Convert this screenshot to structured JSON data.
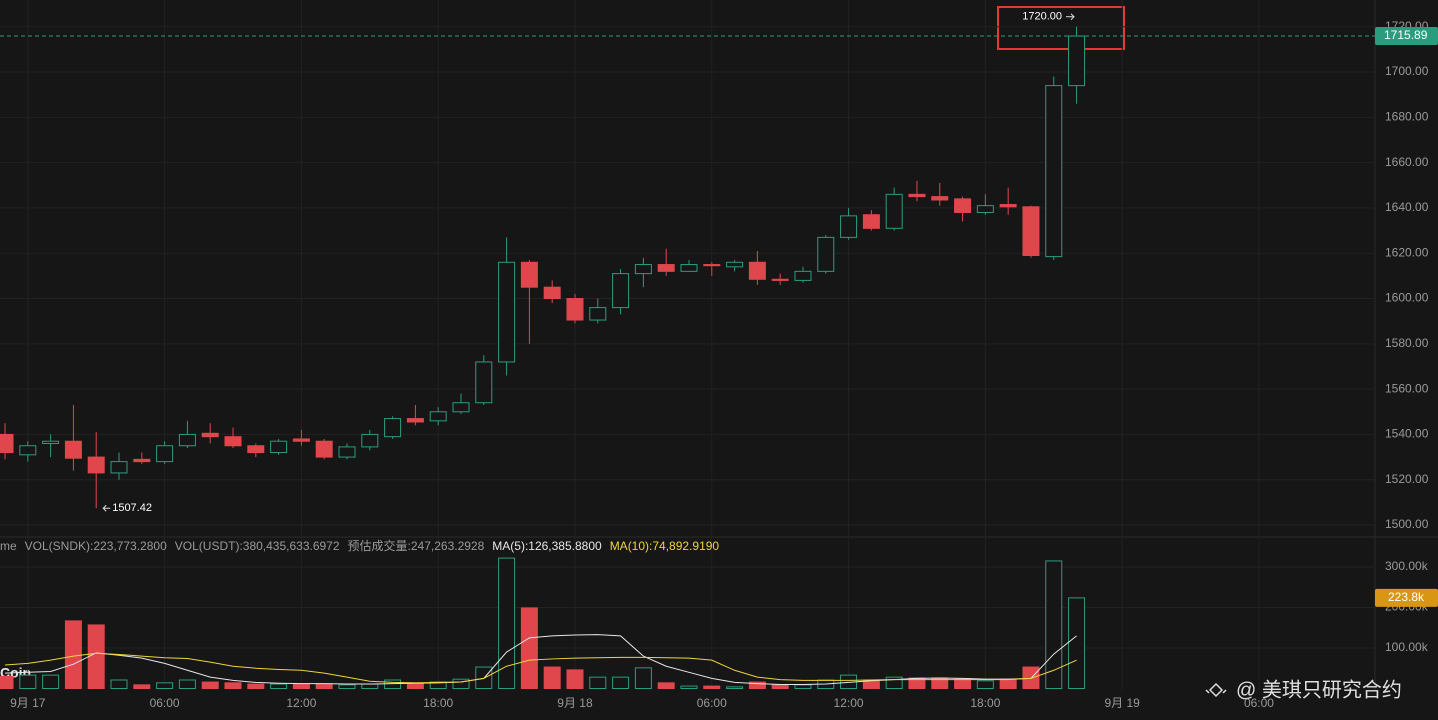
{
  "chart_data": [
    {
      "type": "candlestick",
      "x": [
        0,
        1,
        2,
        3,
        4,
        5,
        6,
        7,
        8,
        9,
        10,
        11,
        12,
        13,
        14,
        15,
        16,
        17,
        18,
        19,
        20,
        21,
        22,
        23,
        24,
        25,
        26,
        27,
        28,
        29,
        30,
        31,
        32,
        33,
        34,
        35,
        36,
        37,
        38,
        39,
        40,
        41,
        42,
        43,
        44,
        45,
        46,
        47
      ],
      "open": [
        1540,
        1531,
        1536,
        1537,
        1530,
        1523,
        1529,
        1528,
        1535,
        1540.5,
        1539,
        1535,
        1532,
        1538,
        1537,
        1530,
        1534.5,
        1539,
        1547,
        1546,
        1550,
        1554,
        1572,
        1616,
        1605,
        1600,
        1590.5,
        1596,
        1611,
        1615,
        1612,
        1615,
        1614,
        1616,
        1608.5,
        1608,
        1612,
        1627,
        1637,
        1631,
        1646,
        1645,
        1644,
        1638,
        1641.5,
        1640.5,
        1618.5,
        1694
      ],
      "high": [
        1545,
        1537,
        1540,
        1553,
        1541,
        1532,
        1532,
        1537,
        1546,
        1545,
        1543,
        1536,
        1538,
        1542,
        1538,
        1536,
        1542,
        1548,
        1553,
        1552,
        1558,
        1575,
        1627,
        1617,
        1608,
        1602,
        1600,
        1613,
        1618,
        1622,
        1617,
        1616,
        1617,
        1621,
        1611,
        1614,
        1628,
        1640,
        1639,
        1649,
        1652,
        1651,
        1645,
        1646,
        1649,
        1641,
        1698,
        1720
      ],
      "low": [
        1529,
        1528,
        1530,
        1524,
        1507.42,
        1520,
        1527,
        1527,
        1534,
        1536,
        1534,
        1530,
        1531,
        1535,
        1529,
        1529,
        1533,
        1538,
        1544,
        1544,
        1549,
        1553,
        1566,
        1580,
        1598,
        1589,
        1589,
        1593,
        1605,
        1610,
        1612,
        1610,
        1612,
        1606,
        1606,
        1607,
        1611,
        1626,
        1630,
        1630,
        1643,
        1641,
        1634,
        1637,
        1637,
        1618,
        1617,
        1686
      ],
      "close": [
        1532,
        1535,
        1537,
        1529.5,
        1523,
        1528,
        1528,
        1535,
        1540,
        1539,
        1535,
        1532,
        1537,
        1537,
        1530,
        1534.5,
        1540,
        1547,
        1545.5,
        1550,
        1554,
        1572,
        1616,
        1605,
        1600,
        1590.5,
        1596,
        1611,
        1615,
        1612,
        1615,
        1614.5,
        1616,
        1608.5,
        1608,
        1612,
        1627,
        1636.5,
        1631,
        1646,
        1645,
        1643.5,
        1638,
        1641,
        1640.5,
        1619,
        1694,
        1715.89
      ],
      "up_color": "#2a9d7e",
      "down_color": "#e0474c",
      "xlim": [
        -0.22,
        60.09
      ],
      "ylim": [
        1495.6,
        1731.8
      ],
      "yticks": [
        {
          "value": 1500,
          "label": "1500.00"
        },
        {
          "value": 1520,
          "label": "1520.00"
        },
        {
          "value": 1540,
          "label": "1540.00"
        },
        {
          "value": 1560,
          "label": "1560.00"
        },
        {
          "value": 1580,
          "label": "1580.00"
        },
        {
          "value": 1600,
          "label": "1600.00"
        },
        {
          "value": 1620,
          "label": "1620.00"
        },
        {
          "value": 1640,
          "label": "1640.00"
        },
        {
          "value": 1660,
          "label": "1660.00"
        },
        {
          "value": 1680,
          "label": "1680.00"
        },
        {
          "value": 1700,
          "label": "1700.00"
        },
        {
          "value": 1720,
          "label": "1720.00"
        }
      ],
      "xticks": [
        {
          "value": 1,
          "label": "9月 17"
        },
        {
          "value": 7,
          "label": "06:00"
        },
        {
          "value": 13,
          "label": "12:00"
        },
        {
          "value": 19,
          "label": "18:00"
        },
        {
          "value": 25,
          "label": "9月 18"
        },
        {
          "value": 31,
          "label": "06:00"
        },
        {
          "value": 37,
          "label": "12:00"
        },
        {
          "value": 43,
          "label": "18:00"
        },
        {
          "value": 49,
          "label": "9月 19"
        },
        {
          "value": 55,
          "label": "06:00"
        }
      ],
      "max_label": {
        "value": 1720,
        "label": "1720.00"
      },
      "grid": true
    },
    {
      "type": "volume",
      "values": [
        30000,
        33000,
        33000,
        167000,
        157000,
        21000,
        9000,
        14000,
        21000,
        16000,
        14000,
        11000,
        11000,
        11000,
        11000,
        9000,
        11000,
        21000,
        14000,
        16000,
        23000,
        53000,
        322000,
        199000,
        53000,
        46000,
        28000,
        28000,
        51000,
        14000,
        6000,
        6000,
        4000,
        16000,
        9000,
        9000,
        21000,
        33000,
        21000,
        28000,
        26000,
        26000,
        23000,
        19000,
        23000,
        53000,
        315000,
        223773.28
      ],
      "ylim": [
        0,
        366700
      ],
      "yticks": [
        {
          "value": 100000,
          "label": "100.00k"
        },
        {
          "value": 200000,
          "label": "200.00k"
        },
        {
          "value": 300000,
          "label": "300.00k"
        }
      ],
      "badge": {
        "value": 223773.28,
        "label": "223.8k"
      },
      "info": [
        "me",
        "VOL(SNDK):223,773.2800",
        "VOL(USDT):380,435,633.6972",
        "预估成交量:247,263.2928"
      ],
      "series": [
        {
          "name": "MA(5):126,385.8800",
          "color": "#e6e6e6",
          "values": [
            38000,
            40000,
            42000,
            60000,
            88000,
            82000,
            75000,
            62000,
            45000,
            28000,
            20000,
            15000,
            13000,
            12000,
            12000,
            11000,
            11000,
            12000,
            13000,
            14000,
            16000,
            25000,
            90000,
            125000,
            130000,
            132000,
            133000,
            130000,
            80000,
            55000,
            40000,
            25000,
            15000,
            12000,
            10000,
            10000,
            11000,
            15000,
            19000,
            22000,
            25000,
            26000,
            25000,
            23000,
            23000,
            25000,
            85000,
            130000
          ]
        },
        {
          "name": "MA(10):74,892.9190",
          "color": "#f0d43a",
          "values": [
            58000,
            62000,
            70000,
            80000,
            87000,
            84000,
            80000,
            76000,
            74000,
            65000,
            55000,
            50000,
            47000,
            45000,
            38000,
            28000,
            18000,
            15000,
            14000,
            15000,
            16000,
            25000,
            55000,
            70000,
            73000,
            75000,
            76000,
            77000,
            77000,
            76000,
            75000,
            70000,
            45000,
            28000,
            22000,
            20000,
            20000,
            20000,
            21000,
            22000,
            22000,
            22000,
            22000,
            22000,
            22000,
            25000,
            45000,
            70000
          ]
        }
      ]
    }
  ],
  "coin": "Coin",
  "watermark": "@ 美琪只研究合约"
}
